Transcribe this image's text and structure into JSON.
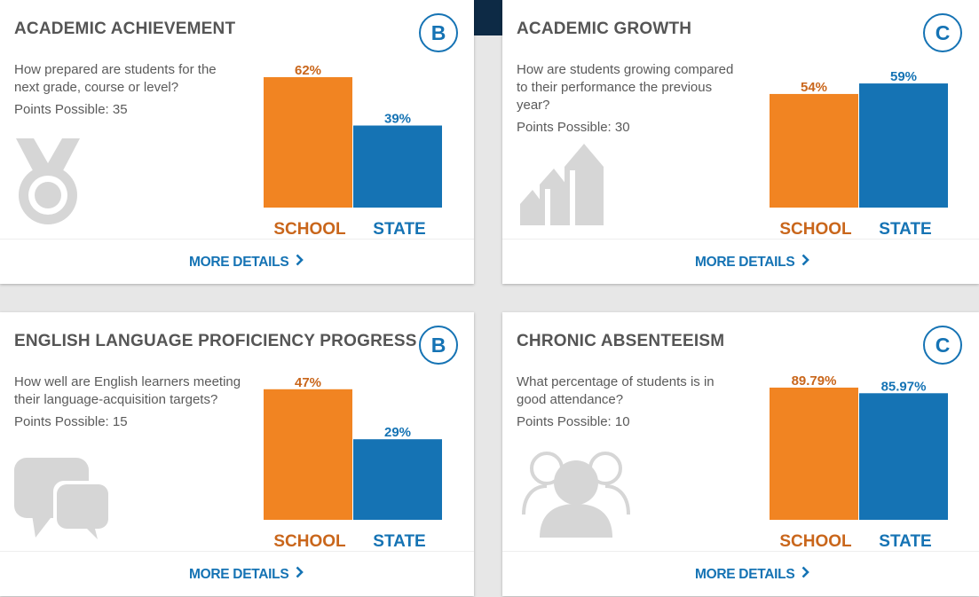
{
  "colors": {
    "school": "#f18422",
    "state": "#1573b4",
    "school_text": "#c9661b",
    "state_text": "#1573b4",
    "icon": "#d6d6d6"
  },
  "cards": [
    {
      "title": "ACADEMIC ACHIEVEMENT",
      "grade": "B",
      "question": "How prepared are students for the next grade, course or level?",
      "points": "Points Possible: 35",
      "icon": "medal-icon",
      "more_details": "MORE DETAILS",
      "chart_data": {
        "type": "bar",
        "categories": [
          "SCHOOL",
          "STATE"
        ],
        "values": [
          62,
          39
        ],
        "value_labels": [
          "62%",
          "39%"
        ],
        "ylim": [
          0,
          70
        ]
      }
    },
    {
      "title": "ACADEMIC GROWTH",
      "grade": "C",
      "question": "How are students growing compared to their performance the previous year?",
      "points": "Points Possible: 30",
      "icon": "growth-arrows-icon",
      "more_details": "MORE DETAILS",
      "chart_data": {
        "type": "bar",
        "categories": [
          "SCHOOL",
          "STATE"
        ],
        "values": [
          54,
          59
        ],
        "value_labels": [
          "54%",
          "59%"
        ],
        "ylim": [
          0,
          70
        ]
      }
    },
    {
      "title": "ENGLISH LANGUAGE PROFICIENCY PROGRESS",
      "grade": "B",
      "question": "How well are English learners meeting their language-acquisition targets?",
      "points": "Points Possible: 15",
      "icon": "speech-bubbles-icon",
      "more_details": "MORE DETAILS",
      "chart_data": {
        "type": "bar",
        "categories": [
          "SCHOOL",
          "STATE"
        ],
        "values": [
          47,
          29
        ],
        "value_labels": [
          "47%",
          "29%"
        ],
        "ylim": [
          0,
          53
        ]
      }
    },
    {
      "title": "CHRONIC ABSENTEEISM",
      "grade": "C",
      "question": "What percentage of students is in good attendance?",
      "points": "Points Possible: 10",
      "icon": "group-icon",
      "more_details": "MORE DETAILS",
      "chart_data": {
        "type": "bar",
        "categories": [
          "SCHOOL",
          "STATE"
        ],
        "values": [
          89.79,
          85.97
        ],
        "value_labels": [
          "89.79%",
          "85.97%"
        ],
        "ylim": [
          0,
          100
        ]
      }
    }
  ]
}
